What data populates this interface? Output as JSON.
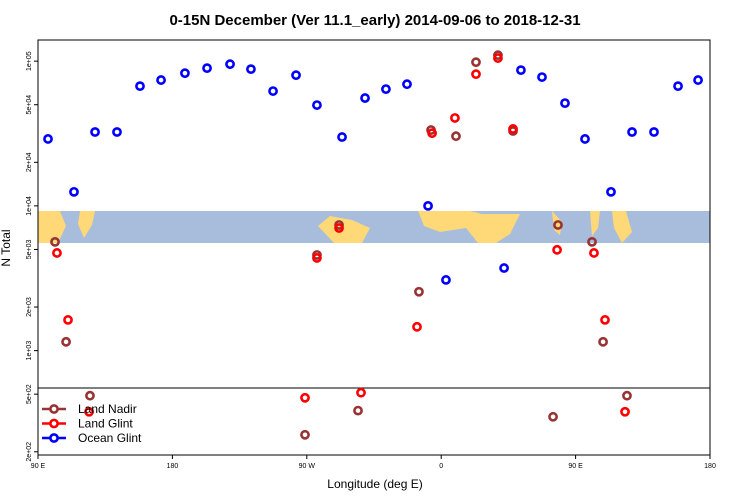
{
  "chart_data": {
    "type": "scatter",
    "title": "0-15N December (Ver 11.1_early)   2014-09-06 to 2018-12-31",
    "xlabel": "Longitude (deg E)",
    "ylabel": "N Total",
    "log_y": true,
    "legend": "bottomleft",
    "xlim": [
      90,
      540
    ],
    "xticks": [
      {
        "value": 90,
        "label": "90 E"
      },
      180,
      {
        "value": 270,
        "label": "90 W"
      },
      {
        "value": 360,
        "label": "0"
      },
      {
        "value": 450,
        "label": "90 E"
      },
      {
        "value": 540,
        "label": "180"
      }
    ],
    "ylim": [
      190,
      140000
    ],
    "yticks": [
      {
        "value": 200,
        "label": "2e+02"
      },
      {
        "value": 500,
        "label": "5e+02"
      },
      {
        "value": 1000,
        "label": "1e+03"
      },
      {
        "value": 2000,
        "label": "2e+03"
      },
      {
        "value": 5000,
        "label": "5e+03"
      },
      {
        "value": 10000,
        "label": "1e+04"
      },
      {
        "value": 20000,
        "label": "2e+04"
      },
      {
        "value": 50000,
        "label": "5e+04"
      },
      {
        "value": 100000,
        "label": "1e+05"
      }
    ],
    "series": [
      {
        "name": "Land Nadir",
        "color": "#993333",
        "x": [
          101.4,
          108.8,
          124.8,
          268.8,
          276.8,
          291.6,
          304.3,
          345.1,
          353.2,
          369.9,
          383.3,
          398.0,
          408.1,
          438.2,
          434.9,
          461.0,
          468.4,
          484.4
        ],
        "values": [
          5640,
          1150,
          488,
          262,
          4580,
          7380,
          385,
          2550,
          33400,
          30300,
          98400,
          110000,
          32900,
          7380,
          349,
          5640,
          1150,
          488
        ]
      },
      {
        "name": "Land Glint",
        "color": "#ff0000",
        "x": [
          102.7,
          110.1,
          124.2,
          268.8,
          276.8,
          291.6,
          306.3,
          343.8,
          353.9,
          369.2,
          383.3,
          398.0,
          408.1,
          437.6,
          462.3,
          469.7,
          483.1
        ],
        "values": [
          4730,
          1630,
          378,
          472,
          4370,
          7030,
          512,
          1460,
          31800,
          40500,
          81300,
          105000,
          34000,
          4970,
          4730,
          1630,
          378
        ]
      },
      {
        "name": "Ocean Glint",
        "color": "#0000ff",
        "x": [
          96.7,
          114.1,
          128.2,
          142.9,
          158.3,
          172.4,
          188.4,
          203.2,
          218.6,
          232.6,
          247.4,
          262.8,
          276.8,
          293.6,
          309.0,
          323.0,
          337.1,
          351.2,
          363.2,
          402.1,
          413.4,
          427.5,
          442.9,
          456.3,
          473.7,
          487.8,
          502.5,
          518.6,
          532.0
        ],
        "values": [
          29000,
          12500,
          32400,
          32400,
          67200,
          74000,
          82600,
          89500,
          95300,
          88100,
          62100,
          80000,
          49700,
          29900,
          55600,
          64100,
          69300,
          10000,
          3080,
          3720,
          86700,
          77600,
          51300,
          29000,
          12500,
          32400,
          32400,
          67200,
          74000
        ]
      }
    ]
  }
}
